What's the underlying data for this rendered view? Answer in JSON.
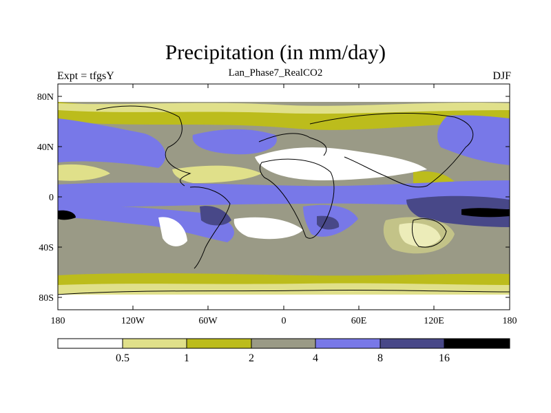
{
  "title": "Precipitation (in mm/day)",
  "subtitle": "Lan_Phase7_RealCO2",
  "left_label": "Expt = tfgsY",
  "right_label": "DJF",
  "axes": {
    "lat_ticks": [
      "80N",
      "40N",
      "0",
      "40S",
      "80S"
    ],
    "lon_ticks": [
      "180",
      "120W",
      "60W",
      "0",
      "60E",
      "120E",
      "180"
    ]
  },
  "colorbar": {
    "labels": [
      "0.5",
      "1",
      "2",
      "4",
      "8",
      "16"
    ],
    "colors": [
      "#ffffff",
      "#e0e08a",
      "#bcbc1c",
      "#9a9a86",
      "#7878e8",
      "#484888",
      "#000000"
    ]
  },
  "colors": {
    "land_outline": "#000000",
    "background": "#ffffff"
  }
}
